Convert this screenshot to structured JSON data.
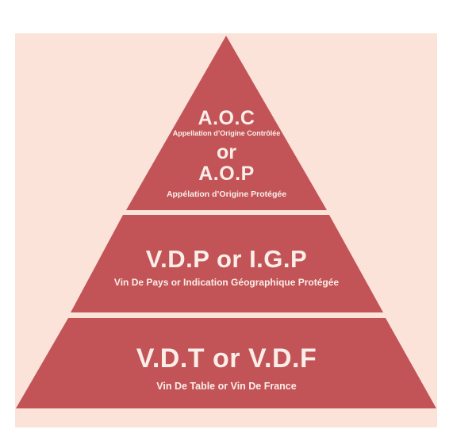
{
  "colors": {
    "background": "#fbe3da",
    "tier_fill": "#c25457",
    "separator": "#fbe3da",
    "text": "#fbeee9"
  },
  "tiers": {
    "top": {
      "title_1": "A.O.C",
      "subtitle_1": "Appellation d’Origine Contrôlée",
      "connector": "or",
      "title_2": "A.O.P",
      "subtitle_2": "Appélation d’Origine Protégée"
    },
    "middle": {
      "title": "V.D.P or I.G.P",
      "subtitle": "Vin De Pays or Indication Géographique Protégée"
    },
    "bottom": {
      "title": "V.D.T or V.D.F",
      "subtitle": "Vin De Table or Vin De France"
    }
  }
}
